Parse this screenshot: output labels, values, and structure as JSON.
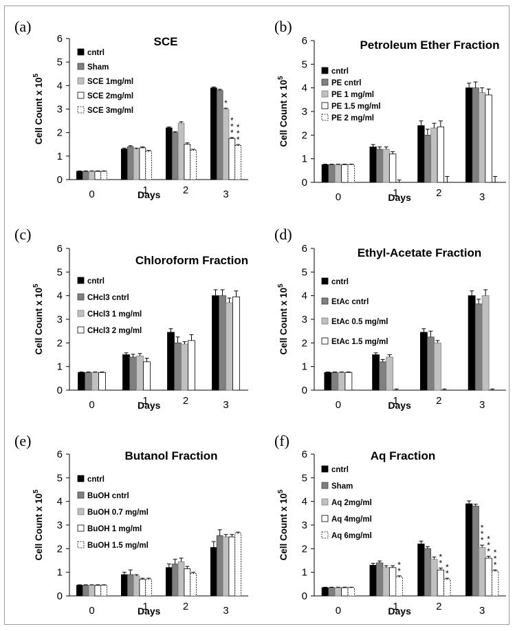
{
  "chart_data": [
    {
      "id": "a",
      "type": "bar",
      "panel_label": "(a)",
      "title": "SCE",
      "xlabel": "Days",
      "ylabel": "Cell Count  x 10^5",
      "ylim": [
        0,
        6
      ],
      "yticks": [
        0,
        1,
        2,
        3,
        4,
        5,
        6
      ],
      "categories": [
        "0",
        "1",
        "2",
        "3"
      ],
      "series": [
        {
          "name": "cntrl",
          "values": [
            0.35,
            1.3,
            2.2,
            3.9
          ],
          "errors": [
            0.02,
            0.04,
            0.04,
            0.04
          ],
          "fill": "#000000",
          "stroke": "#000000",
          "dash": false
        },
        {
          "name": "Sham",
          "values": [
            0.35,
            1.4,
            2.0,
            3.8
          ],
          "errors": [
            0.02,
            0.04,
            0.04,
            0.04
          ],
          "fill": "#808080",
          "stroke": "#404040",
          "dash": false
        },
        {
          "name": "SCE 1mg/ml",
          "values": [
            0.35,
            1.3,
            2.4,
            3.0
          ],
          "errors": [
            0.02,
            0.04,
            0.06,
            0.04
          ],
          "fill": "#c0c0c0",
          "stroke": "#808080",
          "dash": false
        },
        {
          "name": "SCE 2mg/ml",
          "values": [
            0.35,
            1.35,
            1.5,
            1.75
          ],
          "errors": [
            0.02,
            0.04,
            0.06,
            0.04
          ],
          "fill": "#ffffff",
          "stroke": "#000000",
          "dash": false
        },
        {
          "name": "SCE 3mg/ml",
          "values": [
            0.35,
            1.2,
            1.25,
            1.45
          ],
          "errors": [
            0.02,
            0.04,
            0.04,
            0.04
          ],
          "fill": "#ffffff",
          "stroke": "#000000",
          "dash": true
        }
      ],
      "annotations": [
        {
          "category": 3,
          "series": 2,
          "text": "*"
        },
        {
          "category": 3,
          "series": 3,
          "text": "***"
        },
        {
          "category": 3,
          "series": 4,
          "text": "***"
        }
      ]
    },
    {
      "id": "b",
      "type": "bar",
      "panel_label": "(b)",
      "title": "Petroleum Ether Fraction",
      "xlabel": "Days",
      "ylabel": "Cell Count  x 10^5",
      "ylim": [
        0,
        6
      ],
      "yticks": [
        0,
        1,
        2,
        3,
        4,
        5,
        6
      ],
      "categories": [
        "0",
        "1",
        "2",
        "3"
      ],
      "series": [
        {
          "name": "cntrl",
          "values": [
            0.75,
            1.5,
            2.4,
            4.0
          ],
          "errors": [
            0.02,
            0.1,
            0.2,
            0.2
          ],
          "fill": "#000000",
          "stroke": "#000000",
          "dash": false
        },
        {
          "name": "PE cntrl",
          "values": [
            0.75,
            1.4,
            2.0,
            4.0
          ],
          "errors": [
            0.02,
            0.1,
            0.25,
            0.25
          ],
          "fill": "#808080",
          "stroke": "#404040",
          "dash": false
        },
        {
          "name": "PE 1 mg/ml",
          "values": [
            0.75,
            1.4,
            2.3,
            3.8
          ],
          "errors": [
            0.02,
            0.1,
            0.2,
            0.2
          ],
          "fill": "#c0c0c0",
          "stroke": "#808080",
          "dash": false
        },
        {
          "name": "PE 1.5 mg/ml",
          "values": [
            0.75,
            1.2,
            2.35,
            3.7
          ],
          "errors": [
            0.02,
            0.1,
            0.25,
            0.25
          ],
          "fill": "#ffffff",
          "stroke": "#000000",
          "dash": false
        },
        {
          "name": "PE 2 mg/ml",
          "values": [
            0.75,
            0.0,
            0.0,
            0.0
          ],
          "errors": [
            0.02,
            0.1,
            0.25,
            0.25
          ],
          "fill": "#ffffff",
          "stroke": "#000000",
          "dash": true
        }
      ],
      "annotations": []
    },
    {
      "id": "c",
      "type": "bar",
      "panel_label": "(c)",
      "title": "Chloroform Fraction",
      "xlabel": "Days",
      "ylabel": "Cell Count  x 10^5",
      "ylim": [
        0,
        6
      ],
      "yticks": [
        0,
        1,
        2,
        3,
        4,
        5,
        6
      ],
      "categories": [
        "0",
        "1",
        "2",
        "3"
      ],
      "series": [
        {
          "name": "cntrl",
          "values": [
            0.75,
            1.5,
            2.45,
            4.0
          ],
          "errors": [
            0.02,
            0.08,
            0.15,
            0.25
          ],
          "fill": "#000000",
          "stroke": "#000000",
          "dash": false
        },
        {
          "name": "CHcl3 cntrl",
          "values": [
            0.75,
            1.4,
            2.0,
            4.0
          ],
          "errors": [
            0.02,
            0.12,
            0.25,
            0.25
          ],
          "fill": "#808080",
          "stroke": "#404040",
          "dash": false
        },
        {
          "name": "CHcl3 1 mg/ml",
          "values": [
            0.75,
            1.45,
            1.95,
            3.7
          ],
          "errors": [
            0.02,
            0.1,
            0.1,
            0.2
          ],
          "fill": "#c0c0c0",
          "stroke": "#808080",
          "dash": false
        },
        {
          "name": "CHcl3 2 mg/ml",
          "values": [
            0.75,
            1.2,
            2.1,
            3.95
          ],
          "errors": [
            0.02,
            0.15,
            0.25,
            0.25
          ],
          "fill": "#ffffff",
          "stroke": "#000000",
          "dash": false
        }
      ],
      "annotations": []
    },
    {
      "id": "d",
      "type": "bar",
      "panel_label": "(d)",
      "title": "Ethyl-Acetate Fraction",
      "xlabel": "Days",
      "ylabel": "Cell Count  x 10^5",
      "ylim": [
        0,
        6
      ],
      "yticks": [
        0,
        1,
        2,
        3,
        4,
        5,
        6
      ],
      "categories": [
        "0",
        "1",
        "2",
        "3"
      ],
      "series": [
        {
          "name": "cntrl",
          "values": [
            0.75,
            1.5,
            2.45,
            4.0
          ],
          "errors": [
            0.02,
            0.08,
            0.15,
            0.2
          ],
          "fill": "#000000",
          "stroke": "#000000",
          "dash": false
        },
        {
          "name": "EtAc cntrl",
          "values": [
            0.75,
            1.2,
            2.25,
            3.65
          ],
          "errors": [
            0.02,
            0.1,
            0.25,
            0.2
          ],
          "fill": "#808080",
          "stroke": "#404040",
          "dash": false
        },
        {
          "name": "EtAc 0.5 mg/ml",
          "values": [
            0.75,
            1.4,
            2.0,
            4.0
          ],
          "errors": [
            0.02,
            0.1,
            0.1,
            0.25
          ],
          "fill": "#c0c0c0",
          "stroke": "#808080",
          "dash": false
        },
        {
          "name": "EtAc 1.5 mg/ml",
          "values": [
            0.75,
            0.0,
            0.0,
            0.0
          ],
          "errors": [
            0.02,
            0.05,
            0.05,
            0.05
          ],
          "fill": "#ffffff",
          "stroke": "#000000",
          "dash": false
        }
      ],
      "annotations": []
    },
    {
      "id": "e",
      "type": "bar",
      "panel_label": "(e)",
      "title": "Butanol Fraction",
      "xlabel": "Days",
      "ylabel": "Cell Count  x 10^5",
      "ylim": [
        0,
        6
      ],
      "yticks": [
        0,
        1,
        2,
        3,
        4,
        5,
        6
      ],
      "categories": [
        "0",
        "1",
        "2",
        "3"
      ],
      "series": [
        {
          "name": "cntrl",
          "values": [
            0.45,
            0.9,
            1.2,
            2.05
          ],
          "errors": [
            0.02,
            0.1,
            0.15,
            0.25
          ],
          "fill": "#000000",
          "stroke": "#000000",
          "dash": false
        },
        {
          "name": "BuOH cntrl",
          "values": [
            0.45,
            0.9,
            1.35,
            2.55
          ],
          "errors": [
            0.02,
            0.2,
            0.2,
            0.25
          ],
          "fill": "#808080",
          "stroke": "#404040",
          "dash": false
        },
        {
          "name": "BuOH 0.7 mg/ml",
          "values": [
            0.45,
            0.85,
            1.45,
            2.5
          ],
          "errors": [
            0.02,
            0.05,
            0.15,
            0.1
          ],
          "fill": "#c0c0c0",
          "stroke": "#808080",
          "dash": false
        },
        {
          "name": "BuOH 1 mg/ml",
          "values": [
            0.45,
            0.7,
            1.15,
            2.5
          ],
          "errors": [
            0.02,
            0.05,
            0.1,
            0.1
          ],
          "fill": "#ffffff",
          "stroke": "#000000",
          "dash": false
        },
        {
          "name": "BuOH 1.5 mg/ml",
          "values": [
            0.45,
            0.7,
            0.95,
            2.65
          ],
          "errors": [
            0.02,
            0.05,
            0.05,
            0.05
          ],
          "fill": "#ffffff",
          "stroke": "#000000",
          "dash": true
        }
      ],
      "annotations": []
    },
    {
      "id": "f",
      "type": "bar",
      "panel_label": "(f)",
      "title": "Aq Fraction",
      "xlabel": "Days",
      "ylabel": "Cell Count  x 10^5",
      "ylim": [
        0,
        6
      ],
      "yticks": [
        0,
        1,
        2,
        3,
        4,
        5,
        6
      ],
      "categories": [
        "0",
        "1",
        "2",
        "3"
      ],
      "series": [
        {
          "name": "cntrl",
          "values": [
            0.35,
            1.3,
            2.2,
            3.9
          ],
          "errors": [
            0.02,
            0.08,
            0.12,
            0.12
          ],
          "fill": "#000000",
          "stroke": "#000000",
          "dash": false
        },
        {
          "name": "Sham",
          "values": [
            0.35,
            1.4,
            2.0,
            3.8
          ],
          "errors": [
            0.02,
            0.08,
            0.08,
            0.08
          ],
          "fill": "#808080",
          "stroke": "#404040",
          "dash": false
        },
        {
          "name": "Aq 2mg/ml",
          "values": [
            0.35,
            1.2,
            1.55,
            2.05
          ],
          "errors": [
            0.02,
            0.08,
            0.1,
            0.1
          ],
          "fill": "#c0c0c0",
          "stroke": "#808080",
          "dash": false
        },
        {
          "name": "Aq 4mg/ml",
          "values": [
            0.35,
            1.2,
            1.1,
            1.6
          ],
          "errors": [
            0.02,
            0.08,
            0.08,
            0.08
          ],
          "fill": "#ffffff",
          "stroke": "#000000",
          "dash": false
        },
        {
          "name": "Aq 6mg/ml",
          "values": [
            0.35,
            0.8,
            0.7,
            1.05
          ],
          "errors": [
            0.02,
            0.05,
            0.05,
            0.05
          ],
          "fill": "#ffffff",
          "stroke": "#000000",
          "dash": true
        }
      ],
      "annotations": [
        {
          "category": 1,
          "series": 4,
          "text": "**"
        },
        {
          "category": 2,
          "series": 3,
          "text": "**"
        },
        {
          "category": 2,
          "series": 4,
          "text": "**"
        },
        {
          "category": 3,
          "series": 2,
          "text": "***"
        },
        {
          "category": 3,
          "series": 3,
          "text": "***"
        },
        {
          "category": 3,
          "series": 4,
          "text": "***"
        }
      ]
    }
  ]
}
